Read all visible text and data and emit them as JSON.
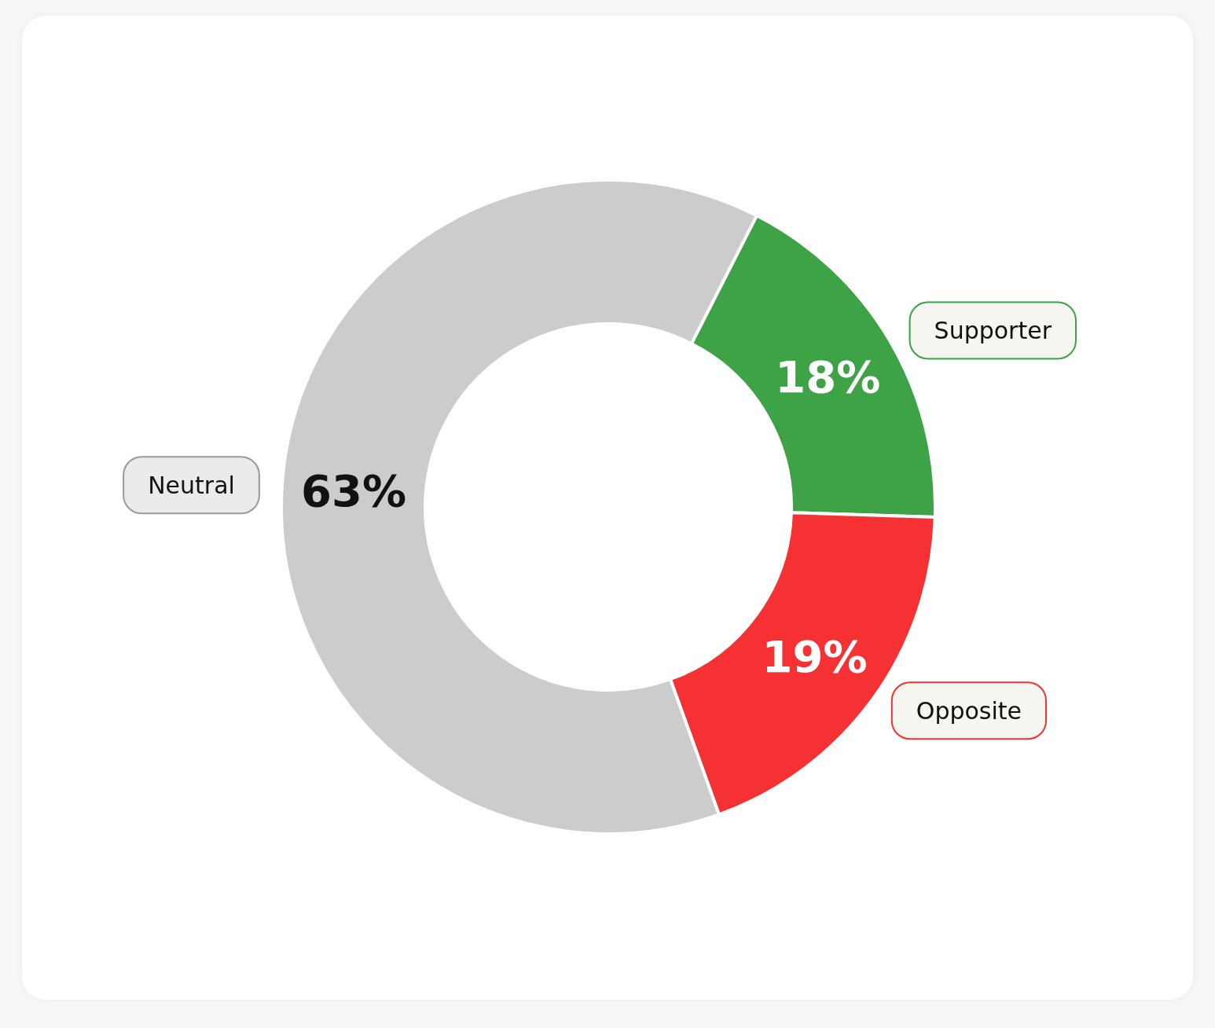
{
  "chart_data": {
    "type": "donut",
    "categories": [
      "Supporter",
      "Opposite",
      "Neutral"
    ],
    "values": [
      18,
      19,
      63
    ],
    "colors": [
      "#3ea346",
      "#f53133",
      "#cccccc"
    ],
    "value_labels": [
      "18%",
      "19%",
      "63%"
    ],
    "legend": false
  }
}
